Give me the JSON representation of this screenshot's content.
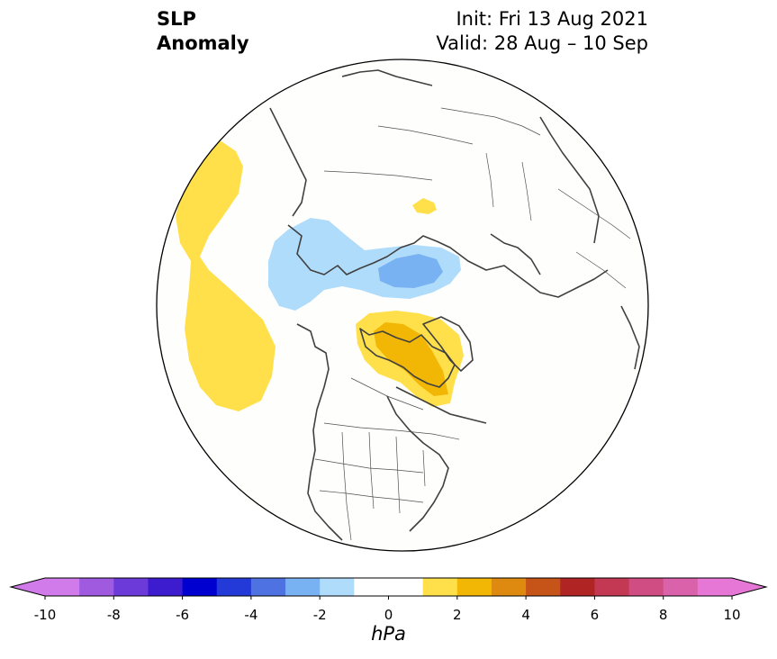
{
  "title": {
    "variable": "SLP",
    "quantity": "Anomaly",
    "init": "Init: Fri 13 Aug 2021",
    "valid": "Valid: 28 Aug – 10 Sep"
  },
  "colorbar": {
    "unit": "hPa",
    "tick_labels": [
      "-10",
      "-8",
      "-6",
      "-4",
      "-2",
      "0",
      "2",
      "4",
      "6",
      "8",
      "10"
    ],
    "bins": [
      {
        "from": -10,
        "to": -9,
        "color": "#d17bea"
      },
      {
        "from": -9,
        "to": -8,
        "color": "#a05ae0"
      },
      {
        "from": -8,
        "to": -7,
        "color": "#6b3ad9"
      },
      {
        "from": -7,
        "to": -6,
        "color": "#3d1ccf"
      },
      {
        "from": -6,
        "to": -5,
        "color": "#0000d0"
      },
      {
        "from": -5,
        "to": -4,
        "color": "#233ad8"
      },
      {
        "from": -4,
        "to": -3,
        "color": "#4f72e2"
      },
      {
        "from": -3,
        "to": -2,
        "color": "#79b2f2"
      },
      {
        "from": -2,
        "to": -1,
        "color": "#b0dcfc"
      },
      {
        "from": -1,
        "to": 1,
        "color": "#ffffff"
      },
      {
        "from": 1,
        "to": 2,
        "color": "#ffe04b"
      },
      {
        "from": 2,
        "to": 3,
        "color": "#f2b705"
      },
      {
        "from": 3,
        "to": 4,
        "color": "#de8a10"
      },
      {
        "from": 4,
        "to": 5,
        "color": "#c65318"
      },
      {
        "from": 5,
        "to": 6,
        "color": "#b02424"
      },
      {
        "from": 6,
        "to": 7,
        "color": "#c33852"
      },
      {
        "from": 7,
        "to": 8,
        "color": "#cf4d82"
      },
      {
        "from": 8,
        "to": 9,
        "color": "#d962aa"
      },
      {
        "from": 9,
        "to": 10,
        "color": "#e677d6"
      }
    ],
    "under_color": "#d17bea",
    "over_color": "#e677d6"
  },
  "map": {
    "projection": "north-polar stereographic",
    "region": "Northern Hemisphere (North America / Arctic)",
    "background_color": "#fefefc",
    "coastline_color": "#404040",
    "anomaly_regions": [
      {
        "name": "north-pacific-positive-anomaly",
        "value": 1.5
      },
      {
        "name": "arctic-siberia-negative-anomaly",
        "value": -1.5
      },
      {
        "name": "arctic-siberia-negative-core",
        "value": -2.5
      },
      {
        "name": "canadian-archipelago-positive-anomaly",
        "value": 1.5
      },
      {
        "name": "canadian-archipelago-positive-core",
        "value": 2.5
      },
      {
        "name": "siberia-small-positive-anomaly",
        "value": 1.5
      }
    ]
  }
}
